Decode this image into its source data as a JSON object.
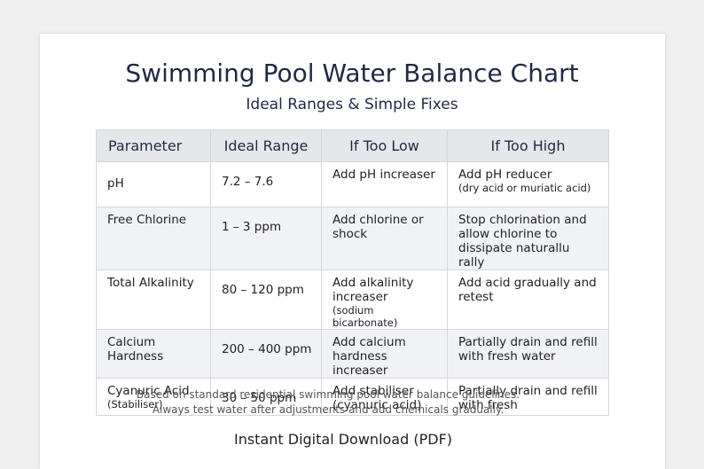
{
  "header": {
    "title": "Swimming Pool Water Balance Chart",
    "subtitle": "Ideal Ranges & Simple Fixes"
  },
  "table": {
    "columns": [
      "Parameter",
      "Ideal Range",
      "If Too Low",
      "If Too High"
    ],
    "rows": [
      [
        {
          "text": "pH"
        },
        {
          "text": "7.2 – 7.6"
        },
        {
          "text": "Add pH increaser"
        },
        {
          "text": "Add pH reducer",
          "note": "(dry acid or muriatic acid)"
        }
      ],
      [
        {
          "text": "Free Chlorine"
        },
        {
          "text": "1 – 3 ppm"
        },
        {
          "text": "Add chlorine or shock"
        },
        {
          "text": "Stop chlorination and allow chlorine to dissipate naturallu rally"
        }
      ],
      [
        {
          "text": "Total Alkalinity"
        },
        {
          "text": "80 – 120 ppm"
        },
        {
          "text": "Add alkalinity increaser",
          "note": "(sodium bicarbonate)"
        },
        {
          "text": "Add acid gradually and retest"
        }
      ],
      [
        {
          "text": "Calcium Hardness"
        },
        {
          "text": "200 – 400 ppm"
        },
        {
          "text": "Add calcium hardness increaser"
        },
        {
          "text": "Partially drain and refill with fresh water"
        }
      ],
      [
        {
          "text": "Cyanuric Acid",
          "note": "(Stabiliser)"
        },
        {
          "text": "30 – 50 ppm"
        },
        {
          "text": "Add stabiliser (cyanuric acid)"
        },
        {
          "text": "Partially drain and refill with fresh"
        }
      ]
    ]
  },
  "footer": {
    "notes": [
      "Based on standard residential swimming pool water balance guidelines.",
      "Always test water after adjustments and add chemicals gradually."
    ],
    "download": "Instant Digital Download (PDF)"
  }
}
